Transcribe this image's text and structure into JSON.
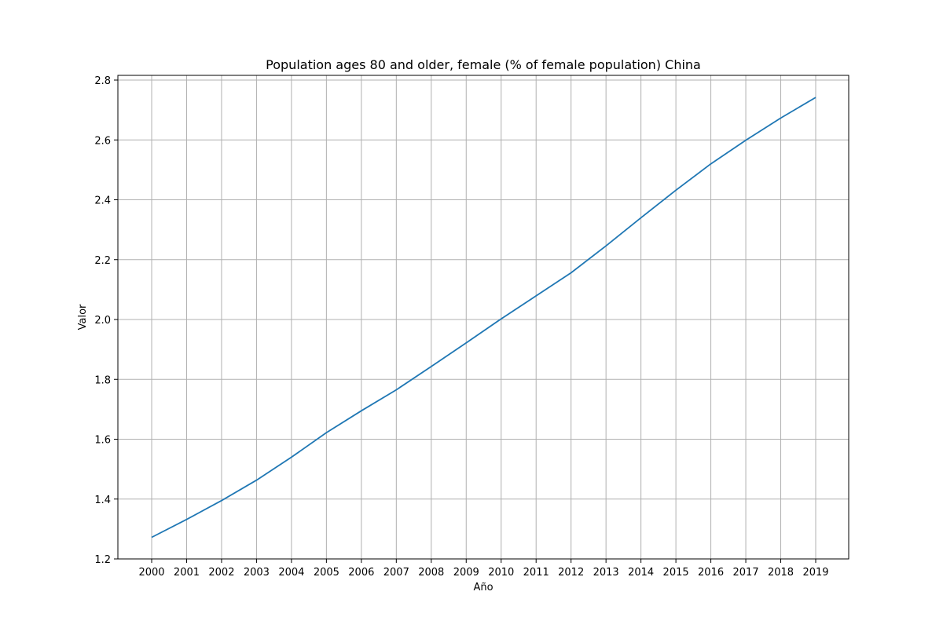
{
  "chart_data": {
    "type": "line",
    "title": "Population ages 80 and older, female (% of female population) China",
    "xlabel": "Año",
    "ylabel": "Valor",
    "x": [
      "2000",
      "2001",
      "2002",
      "2003",
      "2004",
      "2005",
      "2006",
      "2007",
      "2008",
      "2009",
      "2010",
      "2011",
      "2012",
      "2013",
      "2014",
      "2015",
      "2016",
      "2017",
      "2018",
      "2019"
    ],
    "series": [
      {
        "values": [
          1.272,
          1.332,
          1.395,
          1.463,
          1.54,
          1.622,
          1.695,
          1.765,
          1.843,
          1.922,
          2.002,
          2.079,
          2.156,
          2.246,
          2.34,
          2.432,
          2.52,
          2.599,
          2.673,
          2.742
        ],
        "color": "#1f77b4"
      }
    ],
    "yticks": [
      "1.2",
      "1.4",
      "1.6",
      "1.8",
      "2.0",
      "2.2",
      "2.4",
      "2.6",
      "2.8"
    ],
    "ylim": [
      1.2,
      2.8
    ],
    "grid": true,
    "legend": "none"
  }
}
